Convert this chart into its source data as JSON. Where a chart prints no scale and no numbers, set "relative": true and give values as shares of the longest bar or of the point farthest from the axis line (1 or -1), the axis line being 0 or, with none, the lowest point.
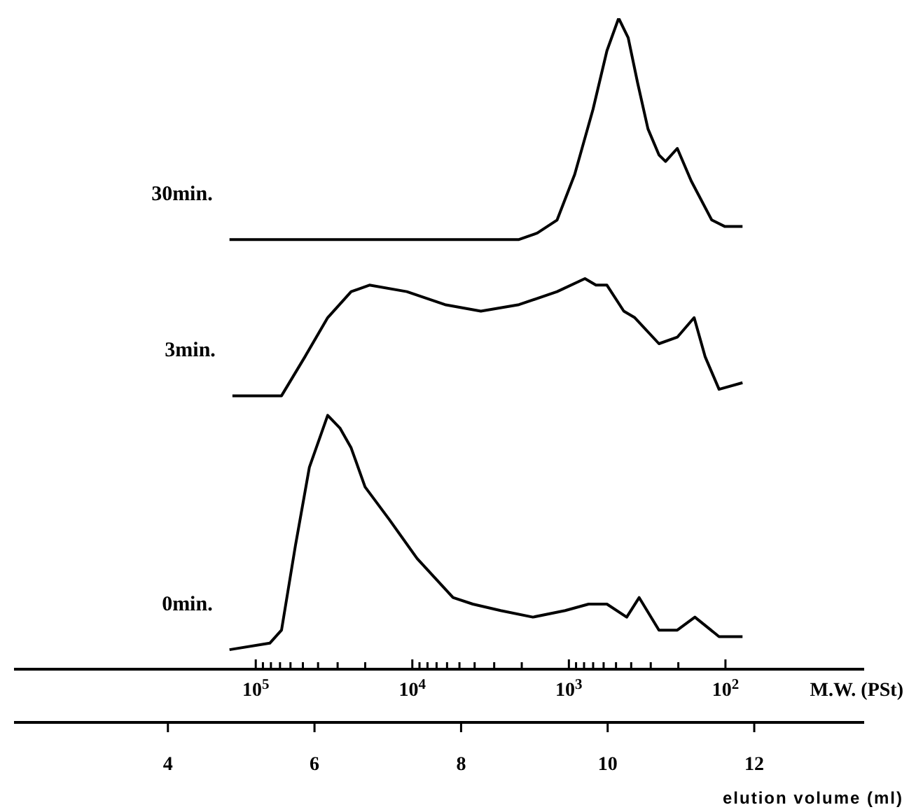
{
  "chart_data": {
    "type": "line",
    "relative": true,
    "xlim": [
      1.9,
      13.5
    ],
    "log": "x2",
    "xlabel": "elution volume (ml)",
    "x2label": "M.W. (PSt)",
    "xticks": [
      4,
      6,
      8,
      10,
      12
    ],
    "x2lim": [
      3500000,
      13
    ],
    "x2ticks": [
      {
        "value": 100000,
        "label": "10$^{5}$"
      },
      {
        "value": 90000,
        "label": null
      },
      {
        "value": 80000,
        "label": null
      },
      {
        "value": 70000,
        "label": null
      },
      {
        "value": 60000,
        "label": null
      },
      {
        "value": 50000,
        "label": null
      },
      {
        "value": 40000,
        "label": null
      },
      {
        "value": 30000,
        "label": null
      },
      {
        "value": 20000,
        "label": null
      },
      {
        "value": 10000,
        "label": "10$^{4}$"
      },
      {
        "value": 9000,
        "label": null
      },
      {
        "value": 8000,
        "label": null
      },
      {
        "value": 7000,
        "label": null
      },
      {
        "value": 6000,
        "label": null
      },
      {
        "value": 5000,
        "label": null
      },
      {
        "value": 4000,
        "label": null
      },
      {
        "value": 3000,
        "label": null
      },
      {
        "value": 2000,
        "label": null
      },
      {
        "value": 1000,
        "label": "10$^{3}$"
      },
      {
        "value": 900,
        "label": null
      },
      {
        "value": 800,
        "label": null
      },
      {
        "value": 700,
        "label": null
      },
      {
        "value": 600,
        "label": null
      },
      {
        "value": 500,
        "label": null
      },
      {
        "value": 400,
        "label": null
      },
      {
        "value": 300,
        "label": null
      },
      {
        "value": 200,
        "label": null
      },
      {
        "value": 100,
        "label": "10$^{2}$"
      }
    ],
    "series": [
      {
        "name": "30min.",
        "color": "#000000",
        "x": [
          4.84,
          8.79,
          9.04,
          9.31,
          9.55,
          9.8,
          9.99,
          10.15,
          10.28,
          10.41,
          10.55,
          10.7,
          10.79,
          10.95,
          11.14,
          11.42,
          11.6,
          11.84
        ],
        "values": [
          0.66,
          0.66,
          0.67,
          0.69,
          0.76,
          0.86,
          0.95,
          1,
          0.97,
          0.9,
          0.83,
          0.79,
          0.78,
          0.8,
          0.75,
          0.69,
          0.68,
          0.68
        ]
      },
      {
        "name": "3min.",
        "color": "#000000",
        "x": [
          4.88,
          5.55,
          5.87,
          6.18,
          6.5,
          6.75,
          7.26,
          7.78,
          8.27,
          8.79,
          9.31,
          9.69,
          9.84,
          9.99,
          10.22,
          10.37,
          10.7,
          10.95,
          11.18,
          11.33,
          11.52,
          11.84
        ],
        "values": [
          0.42,
          0.42,
          0.48,
          0.54,
          0.58,
          0.59,
          0.58,
          0.56,
          0.55,
          0.56,
          0.58,
          0.6,
          0.59,
          0.59,
          0.55,
          0.54,
          0.5,
          0.51,
          0.54,
          0.48,
          0.43,
          0.44
        ]
      },
      {
        "name": "0min.",
        "color": "#000000",
        "x": [
          4.84,
          5.39,
          5.55,
          5.74,
          5.93,
          6.18,
          6.35,
          6.5,
          6.69,
          7.02,
          7.4,
          7.89,
          8.16,
          8.54,
          8.98,
          9.42,
          9.74,
          9.84,
          9.99,
          10.26,
          10.43,
          10.7,
          10.95,
          11.19,
          11.52,
          11.84
        ],
        "values": [
          0.03,
          0.04,
          0.06,
          0.19,
          0.31,
          0.39,
          0.37,
          0.34,
          0.28,
          0.23,
          0.17,
          0.11,
          0.1,
          0.09,
          0.08,
          0.09,
          0.1,
          0.1,
          0.1,
          0.08,
          0.11,
          0.06,
          0.06,
          0.08,
          0.05,
          0.05
        ]
      }
    ]
  }
}
